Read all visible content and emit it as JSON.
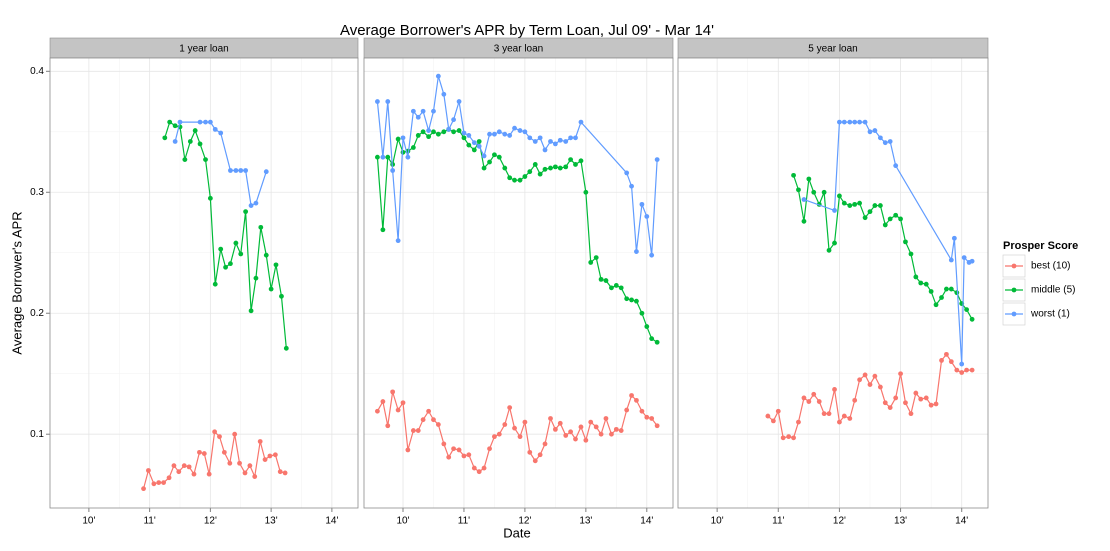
{
  "chart_data": {
    "type": "line",
    "title": "Average Borrower's APR by Term Loan, Jul 09' - Mar 14'",
    "x_label": "Date",
    "y_label": "Average Borrower's APR",
    "legend": {
      "title": "Prosper Score",
      "position": "right"
    },
    "grid": true,
    "xlim": [
      2009.36,
      2014.43
    ],
    "xticks": [
      {
        "value": 2010,
        "label": "10'"
      },
      {
        "value": 2011,
        "label": "11'"
      },
      {
        "value": 2012,
        "label": "12'"
      },
      {
        "value": 2013,
        "label": "13'"
      },
      {
        "value": 2014,
        "label": "14'"
      }
    ],
    "ylim": [
      0.039,
      0.411
    ],
    "yticks": [
      0.1,
      0.2,
      0.3,
      0.4
    ],
    "series": [
      {
        "name": "best (10)",
        "color": "#F8766D"
      },
      {
        "name": "middle (5)",
        "color": "#00BA38"
      },
      {
        "name": "worst (1)",
        "color": "#619CFF"
      }
    ],
    "facets": [
      {
        "title": "1 year loan",
        "series": [
          {
            "x": [
              2010.9,
              2010.98,
              2011.07,
              2011.15,
              2011.23,
              2011.32,
              2011.4,
              2011.48,
              2011.57,
              2011.65,
              2011.73,
              2011.82,
              2011.9,
              2011.98,
              2012.07,
              2012.15,
              2012.23,
              2012.32,
              2012.4,
              2012.48,
              2012.57,
              2012.65,
              2012.73,
              2012.82,
              2012.9,
              2012.98,
              2013.07,
              2013.15,
              2013.23
            ],
            "values": [
              0.055,
              0.07,
              0.059,
              0.06,
              0.06,
              0.064,
              0.074,
              0.069,
              0.074,
              0.073,
              0.067,
              0.085,
              0.084,
              0.067,
              0.102,
              0.098,
              0.085,
              0.076,
              0.1,
              0.076,
              0.068,
              0.074,
              0.065,
              0.094,
              0.079,
              0.082,
              0.083,
              0.069,
              0.068
            ]
          },
          {
            "x": [
              2011.25,
              2011.33,
              2011.42,
              2011.5,
              2011.58,
              2011.67,
              2011.75,
              2011.83,
              2011.92,
              2012.0,
              2012.08,
              2012.17,
              2012.25,
              2012.33,
              2012.42,
              2012.5,
              2012.58,
              2012.67,
              2012.75,
              2012.83,
              2012.92,
              2013.0,
              2013.08,
              2013.17,
              2013.25
            ],
            "values": [
              0.345,
              0.358,
              0.355,
              0.354,
              0.327,
              0.342,
              0.351,
              0.34,
              0.327,
              0.295,
              0.224,
              0.253,
              0.238,
              0.241,
              0.258,
              0.249,
              0.284,
              0.202,
              0.229,
              0.271,
              0.248,
              0.22,
              0.24,
              0.214,
              0.171
            ]
          },
          {
            "x": [
              2011.42,
              2011.5,
              2011.83,
              2011.92,
              2012.0,
              2012.08,
              2012.17,
              2012.33,
              2012.42,
              2012.5,
              2012.58,
              2012.67,
              2012.75,
              2012.92
            ],
            "values": [
              0.342,
              0.358,
              0.358,
              0.358,
              0.358,
              0.352,
              0.349,
              0.318,
              0.318,
              0.318,
              0.318,
              0.289,
              0.291,
              0.317
            ]
          }
        ]
      },
      {
        "title": "3 year loan",
        "series": [
          {
            "x": [
              2009.58,
              2009.67,
              2009.75,
              2009.83,
              2009.92,
              2010.0,
              2010.08,
              2010.17,
              2010.25,
              2010.33,
              2010.42,
              2010.5,
              2010.58,
              2010.67,
              2010.75,
              2010.83,
              2010.92,
              2011.0,
              2011.08,
              2011.17,
              2011.25,
              2011.33,
              2011.42,
              2011.5,
              2011.58,
              2011.67,
              2011.75,
              2011.83,
              2011.92,
              2012.0,
              2012.08,
              2012.17,
              2012.25,
              2012.33,
              2012.42,
              2012.5,
              2012.58,
              2012.67,
              2012.75,
              2012.83,
              2012.92,
              2013.0,
              2013.08,
              2013.17,
              2013.25,
              2013.33,
              2013.42,
              2013.5,
              2013.58,
              2013.67,
              2013.75,
              2013.83,
              2013.92,
              2014.0,
              2014.08,
              2014.17
            ],
            "values": [
              0.119,
              0.127,
              0.107,
              0.135,
              0.12,
              0.126,
              0.087,
              0.103,
              0.103,
              0.112,
              0.119,
              0.112,
              0.108,
              0.092,
              0.081,
              0.088,
              0.087,
              0.082,
              0.083,
              0.072,
              0.069,
              0.072,
              0.088,
              0.098,
              0.1,
              0.108,
              0.122,
              0.105,
              0.098,
              0.11,
              0.085,
              0.078,
              0.083,
              0.092,
              0.113,
              0.104,
              0.109,
              0.099,
              0.102,
              0.096,
              0.106,
              0.095,
              0.11,
              0.106,
              0.1,
              0.113,
              0.1,
              0.104,
              0.103,
              0.12,
              0.132,
              0.128,
              0.119,
              0.114,
              0.113,
              0.107
            ]
          },
          {
            "x": [
              2009.58,
              2009.67,
              2009.75,
              2009.83,
              2009.92,
              2010.0,
              2010.08,
              2010.17,
              2010.25,
              2010.33,
              2010.42,
              2010.5,
              2010.58,
              2010.67,
              2010.75,
              2010.83,
              2010.92,
              2011.0,
              2011.08,
              2011.17,
              2011.25,
              2011.33,
              2011.42,
              2011.5,
              2011.58,
              2011.67,
              2011.75,
              2011.83,
              2011.92,
              2012.0,
              2012.08,
              2012.17,
              2012.25,
              2012.33,
              2012.42,
              2012.5,
              2012.58,
              2012.67,
              2012.75,
              2012.83,
              2012.92,
              2013.0,
              2013.08,
              2013.17,
              2013.25,
              2013.33,
              2013.42,
              2013.5,
              2013.58,
              2013.67,
              2013.75,
              2013.83,
              2013.92,
              2014.0,
              2014.08,
              2014.17
            ],
            "values": [
              0.329,
              0.269,
              0.329,
              0.323,
              0.344,
              0.333,
              0.334,
              0.337,
              0.347,
              0.35,
              0.346,
              0.35,
              0.348,
              0.35,
              0.352,
              0.35,
              0.351,
              0.345,
              0.339,
              0.335,
              0.342,
              0.32,
              0.325,
              0.331,
              0.329,
              0.32,
              0.312,
              0.31,
              0.31,
              0.313,
              0.317,
              0.323,
              0.315,
              0.319,
              0.32,
              0.321,
              0.32,
              0.321,
              0.327,
              0.323,
              0.326,
              0.3,
              0.242,
              0.246,
              0.228,
              0.227,
              0.221,
              0.223,
              0.221,
              0.212,
              0.211,
              0.21,
              0.2,
              0.189,
              0.179,
              0.176
            ]
          },
          {
            "x": [
              2009.58,
              2009.67,
              2009.75,
              2009.83,
              2009.92,
              2010.0,
              2010.08,
              2010.17,
              2010.25,
              2010.33,
              2010.42,
              2010.5,
              2010.58,
              2010.67,
              2010.75,
              2010.83,
              2010.92,
              2011.0,
              2011.08,
              2011.17,
              2011.25,
              2011.33,
              2011.42,
              2011.5,
              2011.58,
              2011.67,
              2011.75,
              2011.83,
              2011.92,
              2012.0,
              2012.08,
              2012.17,
              2012.25,
              2012.33,
              2012.42,
              2012.5,
              2012.58,
              2012.67,
              2012.75,
              2012.83,
              2012.92,
              2013.67,
              2013.75,
              2013.83,
              2013.92,
              2014.0,
              2014.08,
              2014.17
            ],
            "values": [
              0.375,
              0.329,
              0.375,
              0.318,
              0.26,
              0.345,
              0.329,
              0.367,
              0.362,
              0.367,
              0.351,
              0.367,
              0.396,
              0.381,
              0.352,
              0.36,
              0.375,
              0.349,
              0.347,
              0.341,
              0.338,
              0.33,
              0.348,
              0.348,
              0.35,
              0.348,
              0.347,
              0.353,
              0.351,
              0.35,
              0.345,
              0.342,
              0.345,
              0.335,
              0.342,
              0.34,
              0.343,
              0.342,
              0.345,
              0.345,
              0.358,
              0.316,
              0.305,
              0.251,
              0.29,
              0.28,
              0.248,
              0.327
            ]
          }
        ]
      },
      {
        "title": "5 year loan",
        "series": [
          {
            "x": [
              2010.83,
              2010.92,
              2011.0,
              2011.08,
              2011.17,
              2011.25,
              2011.33,
              2011.42,
              2011.5,
              2011.58,
              2011.67,
              2011.75,
              2011.83,
              2011.92,
              2012.0,
              2012.08,
              2012.17,
              2012.25,
              2012.33,
              2012.42,
              2012.5,
              2012.58,
              2012.67,
              2012.75,
              2012.83,
              2012.92,
              2013.0,
              2013.08,
              2013.17,
              2013.25,
              2013.33,
              2013.42,
              2013.5,
              2013.58,
              2013.67,
              2013.75,
              2013.83,
              2013.92,
              2014.0,
              2014.08,
              2014.17
            ],
            "values": [
              0.115,
              0.111,
              0.119,
              0.097,
              0.098,
              0.097,
              0.11,
              0.13,
              0.127,
              0.133,
              0.127,
              0.117,
              0.117,
              0.137,
              0.11,
              0.115,
              0.113,
              0.128,
              0.145,
              0.149,
              0.141,
              0.148,
              0.139,
              0.126,
              0.122,
              0.13,
              0.15,
              0.126,
              0.117,
              0.134,
              0.129,
              0.13,
              0.124,
              0.125,
              0.161,
              0.166,
              0.16,
              0.153,
              0.151,
              0.153,
              0.153
            ]
          },
          {
            "x": [
              2011.25,
              2011.33,
              2011.42,
              2011.5,
              2011.58,
              2011.67,
              2011.75,
              2011.83,
              2011.92,
              2012.0,
              2012.08,
              2012.17,
              2012.25,
              2012.33,
              2012.42,
              2012.5,
              2012.58,
              2012.67,
              2012.75,
              2012.83,
              2012.92,
              2013.0,
              2013.08,
              2013.17,
              2013.25,
              2013.33,
              2013.42,
              2013.5,
              2013.58,
              2013.67,
              2013.75,
              2013.83,
              2013.92,
              2014.0,
              2014.08,
              2014.17
            ],
            "values": [
              0.314,
              0.302,
              0.276,
              0.311,
              0.3,
              0.29,
              0.3,
              0.252,
              0.258,
              0.297,
              0.291,
              0.289,
              0.29,
              0.291,
              0.279,
              0.284,
              0.289,
              0.289,
              0.273,
              0.278,
              0.281,
              0.278,
              0.259,
              0.249,
              0.23,
              0.225,
              0.224,
              0.218,
              0.207,
              0.213,
              0.22,
              0.22,
              0.217,
              0.208,
              0.203,
              0.195
            ]
          },
          {
            "x": [
              2011.42,
              2011.92,
              2012.0,
              2012.08,
              2012.17,
              2012.25,
              2012.33,
              2012.42,
              2012.5,
              2012.58,
              2012.67,
              2012.75,
              2012.83,
              2012.92,
              2013.83,
              2013.88,
              2014.0,
              2014.04,
              2014.12,
              2014.17
            ],
            "values": [
              0.294,
              0.285,
              0.358,
              0.358,
              0.358,
              0.358,
              0.358,
              0.358,
              0.35,
              0.351,
              0.345,
              0.341,
              0.342,
              0.322,
              0.244,
              0.262,
              0.158,
              0.246,
              0.242,
              0.243
            ]
          }
        ]
      }
    ]
  }
}
